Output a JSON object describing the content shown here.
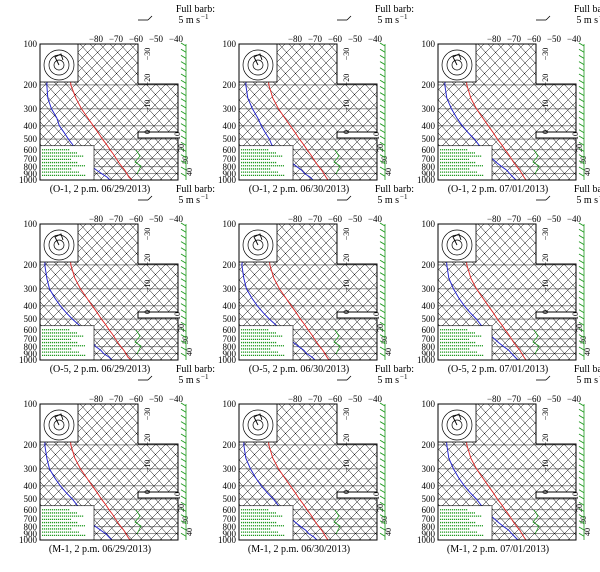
{
  "colors": {
    "temperature": "#e03030",
    "dewpoint": "#2a2ad0",
    "wind": "#1f9a1f",
    "annotation": "#1f9a1f",
    "frame": "#000000"
  },
  "pressure_labels": [
    "100",
    "200",
    "300",
    "400",
    "500",
    "600",
    "700",
    "800",
    "900",
    "1000"
  ],
  "temp_labels": [
    "−80",
    "−70",
    "−60",
    "−50",
    "−40"
  ],
  "side_labels": [
    "−30",
    "−20",
    "−10",
    "0",
    "10",
    "20",
    "30",
    "40"
  ],
  "full_barb_title": "Full barb:",
  "full_barb_unit": "5 m s",
  "full_barb_exp": "−1",
  "chart_data": [
    {
      "type": "line",
      "caption": "(O-1, 2 p.m. 06/29/2013)",
      "series": [
        {
          "pressure": [
            1000,
            950,
            900,
            850,
            800,
            750,
            700,
            650,
            600,
            550,
            500,
            450,
            400,
            350,
            300,
            250,
            200,
            150,
            100
          ],
          "values": [
            34,
            30,
            27,
            24,
            20,
            16,
            12,
            8,
            3,
            -2,
            -8,
            -14,
            -21,
            -29,
            -38,
            -47,
            -56,
            -62,
            -66
          ]
        },
        {
          "pressure": [
            1000,
            950,
            900,
            850,
            800,
            750,
            700,
            650,
            600,
            550,
            500,
            450,
            400,
            350,
            300,
            250,
            200,
            150,
            100
          ],
          "values": [
            12,
            8,
            2,
            -4,
            -10,
            -16,
            -20,
            -26,
            -32,
            -36,
            -42,
            -48,
            -55,
            -60,
            -68,
            -75,
            -80,
            -84,
            -86
          ]
        }
      ]
    },
    {
      "type": "line",
      "caption": "(O-1, 2 p.m. 06/30/2013)",
      "series": [
        {
          "pressure": [
            1000,
            950,
            900,
            850,
            800,
            750,
            700,
            650,
            600,
            550,
            500,
            450,
            400,
            350,
            300,
            250,
            200,
            150,
            100
          ],
          "values": [
            31,
            28,
            25,
            22,
            18,
            14,
            10,
            6,
            1,
            -4,
            -10,
            -16,
            -23,
            -31,
            -40,
            -49,
            -57,
            -63,
            -66
          ]
        },
        {
          "pressure": [
            1000,
            950,
            900,
            850,
            800,
            750,
            700,
            650,
            600,
            550,
            500,
            450,
            400,
            350,
            300,
            250,
            200,
            150,
            100
          ],
          "values": [
            16,
            12,
            6,
            2,
            -4,
            -10,
            -14,
            -22,
            -30,
            -36,
            -40,
            -46,
            -52,
            -58,
            -66,
            -74,
            -80,
            -84,
            -86
          ]
        }
      ]
    },
    {
      "type": "line",
      "caption": "(O-1, 2 p.m. 07/01/2013)",
      "series": [
        {
          "pressure": [
            1000,
            950,
            900,
            850,
            800,
            750,
            700,
            650,
            600,
            550,
            500,
            450,
            400,
            350,
            300,
            250,
            200,
            150,
            100
          ],
          "values": [
            30,
            27,
            24,
            21,
            17,
            13,
            9,
            5,
            0,
            -5,
            -11,
            -17,
            -24,
            -32,
            -41,
            -50,
            -58,
            -64,
            -67
          ]
        },
        {
          "pressure": [
            1000,
            950,
            900,
            850,
            800,
            750,
            700,
            650,
            600,
            550,
            500,
            450,
            400,
            350,
            300,
            250,
            200,
            150,
            100
          ],
          "values": [
            20,
            16,
            12,
            8,
            2,
            -4,
            -10,
            -16,
            -22,
            -28,
            -34,
            -42,
            -50,
            -58,
            -66,
            -74,
            -80,
            -84,
            -86
          ]
        }
      ]
    },
    {
      "type": "line",
      "caption": "(O-5, 2 p.m. 06/29/2013)",
      "series": [
        {
          "pressure": [
            1000,
            950,
            900,
            850,
            800,
            750,
            700,
            650,
            600,
            550,
            500,
            450,
            400,
            350,
            300,
            250,
            200,
            150,
            100
          ],
          "values": [
            33,
            29,
            26,
            23,
            19,
            15,
            11,
            7,
            2,
            -3,
            -9,
            -15,
            -22,
            -30,
            -39,
            -48,
            -56,
            -62,
            -66
          ]
        },
        {
          "pressure": [
            1000,
            950,
            900,
            850,
            800,
            750,
            700,
            650,
            600,
            550,
            500,
            450,
            400,
            350,
            300,
            250,
            200,
            150,
            100
          ],
          "values": [
            14,
            10,
            4,
            0,
            -6,
            -10,
            -14,
            -18,
            -24,
            -30,
            -38,
            -46,
            -54,
            -62,
            -70,
            -76,
            -82,
            -86,
            -88
          ]
        }
      ]
    },
    {
      "type": "line",
      "caption": "(O-5, 2 p.m. 06/30/2013)",
      "series": [
        {
          "pressure": [
            1000,
            950,
            900,
            850,
            800,
            750,
            700,
            650,
            600,
            550,
            500,
            450,
            400,
            350,
            300,
            250,
            200,
            150,
            100
          ],
          "values": [
            32,
            29,
            26,
            23,
            19,
            15,
            11,
            7,
            2,
            -3,
            -9,
            -15,
            -22,
            -30,
            -39,
            -48,
            -56,
            -62,
            -66
          ]
        },
        {
          "pressure": [
            1000,
            950,
            900,
            850,
            800,
            750,
            700,
            650,
            600,
            550,
            500,
            450,
            400,
            350,
            300,
            250,
            200,
            150,
            100
          ],
          "values": [
            18,
            14,
            8,
            4,
            -2,
            -8,
            -14,
            -20,
            -26,
            -32,
            -40,
            -48,
            -56,
            -64,
            -72,
            -78,
            -84,
            -86,
            -88
          ]
        }
      ]
    },
    {
      "type": "line",
      "caption": "(O-5, 2 p.m. 07/01/2013)",
      "series": [
        {
          "pressure": [
            1000,
            950,
            900,
            850,
            800,
            750,
            700,
            650,
            600,
            550,
            500,
            450,
            400,
            350,
            300,
            250,
            200,
            150,
            100
          ],
          "values": [
            30,
            27,
            24,
            21,
            17,
            13,
            9,
            5,
            0,
            -5,
            -11,
            -17,
            -24,
            -32,
            -41,
            -50,
            -58,
            -64,
            -67
          ]
        },
        {
          "pressure": [
            1000,
            950,
            900,
            850,
            800,
            750,
            700,
            650,
            600,
            550,
            500,
            450,
            400,
            350,
            300,
            250,
            200,
            150,
            100
          ],
          "values": [
            22,
            18,
            14,
            10,
            4,
            -2,
            -8,
            -14,
            -20,
            -26,
            -32,
            -40,
            -48,
            -56,
            -64,
            -72,
            -78,
            -84,
            -86
          ]
        }
      ]
    },
    {
      "type": "line",
      "caption": "(M-1, 2 p.m. 06/29/2013)",
      "series": [
        {
          "pressure": [
            1000,
            950,
            900,
            850,
            800,
            750,
            700,
            650,
            600,
            550,
            500,
            450,
            400,
            350,
            300,
            250,
            200,
            150,
            100
          ],
          "values": [
            32,
            29,
            26,
            23,
            19,
            15,
            11,
            7,
            2,
            -3,
            -9,
            -15,
            -22,
            -30,
            -39,
            -48,
            -56,
            -62,
            -66
          ]
        },
        {
          "pressure": [
            1000,
            950,
            900,
            850,
            800,
            750,
            700,
            650,
            600,
            550,
            500,
            450,
            400,
            350,
            300,
            250,
            200,
            150,
            100
          ],
          "values": [
            14,
            10,
            6,
            0,
            -6,
            -12,
            -16,
            -20,
            -26,
            -32,
            -38,
            -46,
            -54,
            -62,
            -70,
            -76,
            -82,
            -86,
            -88
          ]
        }
      ]
    },
    {
      "type": "line",
      "caption": "(M-1, 2 p.m. 06/30/2013)",
      "series": [
        {
          "pressure": [
            1000,
            950,
            900,
            850,
            800,
            750,
            700,
            650,
            600,
            550,
            500,
            450,
            400,
            350,
            300,
            250,
            200,
            150,
            100
          ],
          "values": [
            31,
            28,
            25,
            22,
            18,
            14,
            10,
            6,
            1,
            -4,
            -10,
            -16,
            -23,
            -31,
            -40,
            -49,
            -57,
            -63,
            -66
          ]
        },
        {
          "pressure": [
            1000,
            950,
            900,
            850,
            800,
            750,
            700,
            650,
            600,
            550,
            500,
            450,
            400,
            350,
            300,
            250,
            200,
            150,
            100
          ],
          "values": [
            20,
            16,
            10,
            6,
            0,
            -6,
            -12,
            -18,
            -24,
            -30,
            -36,
            -44,
            -52,
            -60,
            -68,
            -76,
            -82,
            -86,
            -88
          ]
        }
      ]
    },
    {
      "type": "line",
      "caption": "(M-1, 2 p.m. 07/01/2013)",
      "series": [
        {
          "pressure": [
            1000,
            950,
            900,
            850,
            800,
            750,
            700,
            650,
            600,
            550,
            500,
            450,
            400,
            350,
            300,
            250,
            200,
            150,
            100
          ],
          "values": [
            30,
            27,
            24,
            21,
            17,
            13,
            9,
            5,
            0,
            -5,
            -11,
            -17,
            -24,
            -32,
            -41,
            -50,
            -58,
            -64,
            -67
          ]
        },
        {
          "pressure": [
            1000,
            950,
            900,
            850,
            800,
            750,
            700,
            650,
            600,
            550,
            500,
            450,
            400,
            350,
            300,
            250,
            200,
            150,
            100
          ],
          "values": [
            22,
            18,
            14,
            10,
            4,
            -2,
            -8,
            -14,
            -20,
            -26,
            -32,
            -40,
            -48,
            -56,
            -64,
            -72,
            -78,
            -84,
            -86
          ]
        }
      ]
    }
  ]
}
